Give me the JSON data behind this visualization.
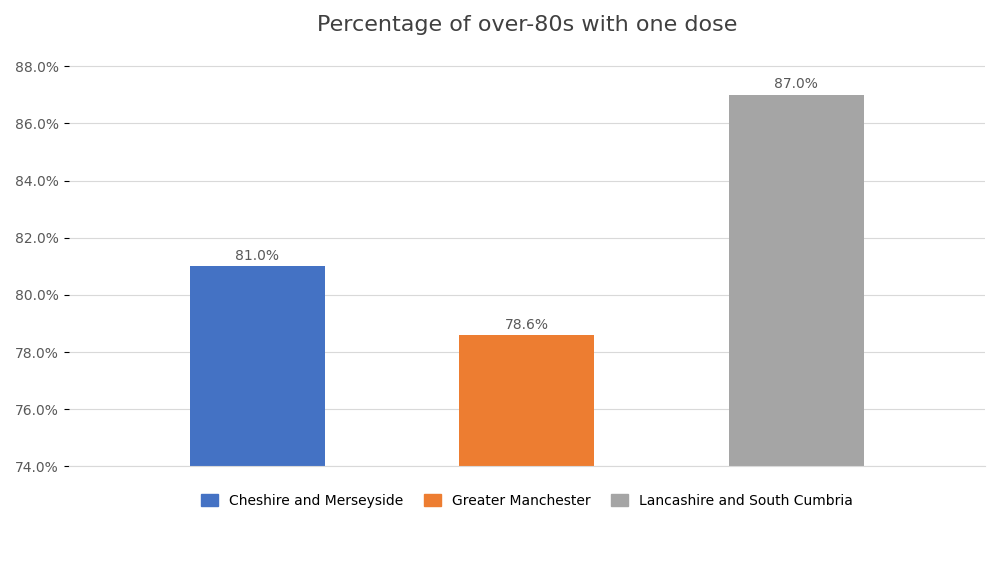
{
  "title": "Percentage of over-80s with one dose",
  "categories": [
    "Cheshire and Merseyside",
    "Greater Manchester",
    "Lancashire and South Cumbria"
  ],
  "values": [
    81.0,
    78.6,
    87.0
  ],
  "bar_colors": [
    "#4472C4",
    "#ED7D31",
    "#A5A5A5"
  ],
  "bar_labels": [
    "81.0%",
    "78.6%",
    "87.0%"
  ],
  "ylim": [
    74.0,
    88.5
  ],
  "yticks": [
    74.0,
    76.0,
    78.0,
    80.0,
    82.0,
    84.0,
    86.0,
    88.0
  ],
  "ytick_labels": [
    "74.0%",
    "76.0%",
    "78.0%",
    "80.0%",
    "82.0%",
    "84.0%",
    "86.0%",
    "88.0%"
  ],
  "background_color": "#FFFFFF",
  "grid_color": "#D9D9D9",
  "title_fontsize": 16,
  "label_fontsize": 10,
  "tick_fontsize": 10,
  "legend_fontsize": 10
}
